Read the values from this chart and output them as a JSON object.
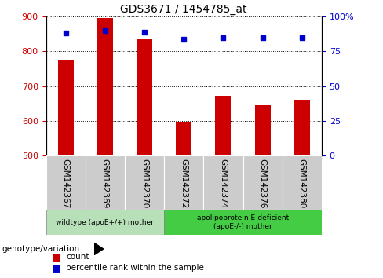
{
  "title": "GDS3671 / 1454785_at",
  "samples": [
    "GSM142367",
    "GSM142369",
    "GSM142370",
    "GSM142372",
    "GSM142374",
    "GSM142376",
    "GSM142380"
  ],
  "counts": [
    775,
    895,
    835,
    597,
    672,
    645,
    660
  ],
  "percentile_ranks": [
    88,
    90,
    89,
    84,
    85,
    85,
    85
  ],
  "ylim_left": [
    500,
    900
  ],
  "ylim_right": [
    0,
    100
  ],
  "yticks_left": [
    500,
    600,
    700,
    800,
    900
  ],
  "yticks_right": [
    0,
    25,
    50,
    75,
    100
  ],
  "bar_color": "#cc0000",
  "dot_color": "#0000cc",
  "group1_label": "wildtype (apoE+/+) mother",
  "group2_label": "apolipoprotein E-deficient\n(apoE-/-) mother",
  "group1_indices": [
    0,
    1,
    2
  ],
  "group2_indices": [
    3,
    4,
    5,
    6
  ],
  "group1_bg": "#b8e0b8",
  "group2_bg": "#44cc44",
  "sample_bg": "#cccccc",
  "legend_count_label": "count",
  "legend_pct_label": "percentile rank within the sample",
  "bottom_label": "genotype/variation",
  "bar_width": 0.4
}
